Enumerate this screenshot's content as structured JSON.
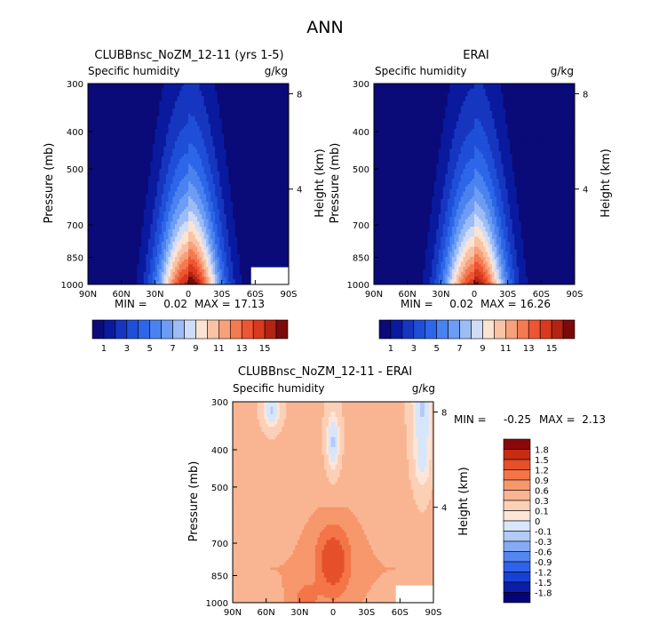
{
  "figure": {
    "title": "ANN"
  },
  "colors": {
    "cmap_abs": [
      "#0a0a78",
      "#0a1a9e",
      "#1636c0",
      "#1f4fd8",
      "#2d66e8",
      "#4a82f0",
      "#6c9cf4",
      "#9cbcf6",
      "#cfdcf8",
      "#fbe3d2",
      "#f9c3a6",
      "#f7a07c",
      "#f47a52",
      "#ee5532",
      "#d93a1e",
      "#b32412",
      "#7c0a0a"
    ],
    "cmap_diff": [
      "#040478",
      "#0a1ea8",
      "#1640d6",
      "#2e62e8",
      "#5585f0",
      "#86aaf5",
      "#b3cbf8",
      "#d7e6fb",
      "#fde6d8",
      "#fcd0b6",
      "#f9b592",
      "#f7976c",
      "#f37548",
      "#e5502a",
      "#c62c12",
      "#8a0808"
    ]
  },
  "chart_data": [
    {
      "type": "heatmap",
      "title": "CLUBBnsc_NoZM_12-11 (yrs 1-5)",
      "variable": "Specific humidity",
      "units": "g/kg",
      "ylabel": "Pressure (mb)",
      "ylabel_right": "Height (km)",
      "x_ticks": [
        "90N",
        "60N",
        "30N",
        "0",
        "30S",
        "60S",
        "90S"
      ],
      "y_ticks": [
        "300",
        "400",
        "500",
        "700",
        "850",
        "1000"
      ],
      "y_right_ticks": [
        "8",
        "4"
      ],
      "min": "0.02",
      "max": "17.13",
      "stats_min_label": "MIN =",
      "stats_max_label": "MAX =",
      "colorbar_labels": [
        "1",
        "3",
        "5",
        "7",
        "9",
        "11",
        "13",
        "15"
      ],
      "masked_region": "60S-90S below 900 mb",
      "peak_lat": 0,
      "peak_value": 17.13,
      "yscale": "log-pressure",
      "ylim": [
        1000,
        300
      ],
      "xlim": [
        "90N",
        "90S"
      ]
    },
    {
      "type": "heatmap",
      "title": "ERAI",
      "variable": "Specific humidity",
      "units": "g/kg",
      "ylabel": "Pressure (mb)",
      "ylabel_right": "Height (km)",
      "x_ticks": [
        "90N",
        "60N",
        "30N",
        "0",
        "30S",
        "60S",
        "90S"
      ],
      "y_ticks": [
        "300",
        "400",
        "500",
        "700",
        "850",
        "1000"
      ],
      "y_right_ticks": [
        "8",
        "4"
      ],
      "min": "0.02",
      "max": "16.26",
      "stats_min_label": "MIN =",
      "stats_max_label": "MAX =",
      "colorbar_labels": [
        "1",
        "3",
        "5",
        "7",
        "9",
        "11",
        "13",
        "15"
      ],
      "peak_lat": 0,
      "peak_value": 16.26,
      "yscale": "log-pressure",
      "ylim": [
        1000,
        300
      ],
      "xlim": [
        "90N",
        "90S"
      ]
    },
    {
      "type": "heatmap",
      "title": "CLUBBnsc_NoZM_12-11 - ERAI",
      "variable": "Specific humidity",
      "units": "g/kg",
      "ylabel": "Pressure (mb)",
      "ylabel_right": "Height (km)",
      "x_ticks": [
        "90N",
        "60N",
        "30N",
        "0",
        "30S",
        "60S",
        "90S"
      ],
      "y_ticks": [
        "300",
        "400",
        "500",
        "700",
        "850",
        "1000"
      ],
      "y_right_ticks": [
        "8",
        "4"
      ],
      "min": "-0.25",
      "max": "2.13",
      "stats_min_label": "MIN =",
      "stats_max_label": "MAX =",
      "colorbar_labels": [
        "1.8",
        "1.5",
        "1.2",
        "0.9",
        "0.6",
        "0.3",
        "0.1",
        "0",
        "-0.1",
        "-0.3",
        "-0.6",
        "-0.9",
        "-1.2",
        "-1.5",
        "-1.8"
      ],
      "features": [
        {
          "region": "tropics 20N-20S, 700-900 mb",
          "anomaly": 1.2
        },
        {
          "region": "equator 400-500 mb",
          "anomaly": -0.1
        },
        {
          "region": "60S-90S upper levels",
          "anomaly": -0.1
        }
      ],
      "yscale": "log-pressure",
      "ylim": [
        1000,
        300
      ],
      "xlim": [
        "90N",
        "90S"
      ]
    }
  ]
}
